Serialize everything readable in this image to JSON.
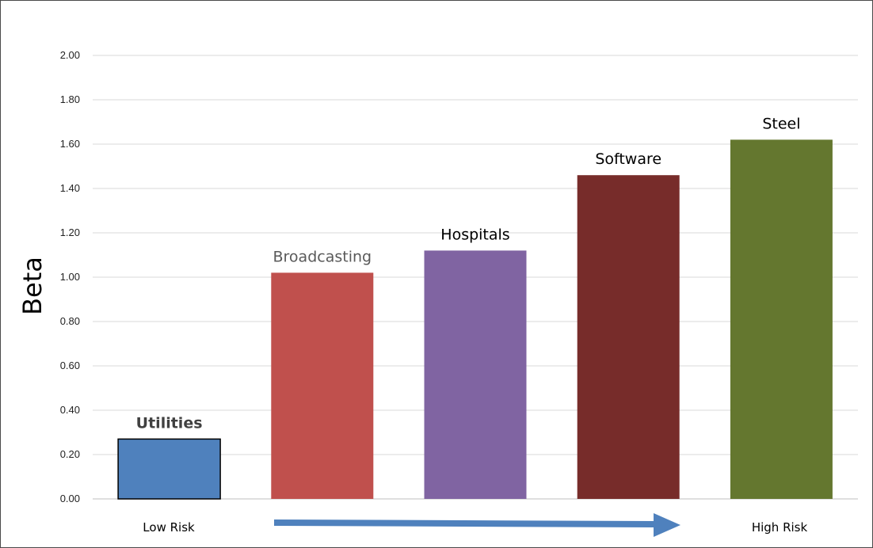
{
  "chart_data": {
    "type": "bar",
    "title": "",
    "xlabel": "",
    "ylabel": "Beta",
    "ylim": [
      0,
      2
    ],
    "yticks": [
      "0.00",
      "0.20",
      "0.40",
      "0.60",
      "0.80",
      "1.00",
      "1.20",
      "1.40",
      "1.60",
      "1.80",
      "2.00"
    ],
    "grid": true,
    "categories": [
      "Utilities",
      "Broadcasting",
      "Hospitals",
      "Software",
      "Steel"
    ],
    "values": [
      0.27,
      1.02,
      1.12,
      1.46,
      1.62
    ],
    "colors": [
      "#4f81bd",
      "#c0504d",
      "#8064a2",
      "#772c2a",
      "#64772f"
    ],
    "label_colors": [
      "#404040",
      "#595959",
      "#000000",
      "#000000",
      "#000000"
    ],
    "annotations": {
      "low": "Low Risk",
      "high": "High Risk",
      "arrow_color": "#4f81bd"
    }
  }
}
